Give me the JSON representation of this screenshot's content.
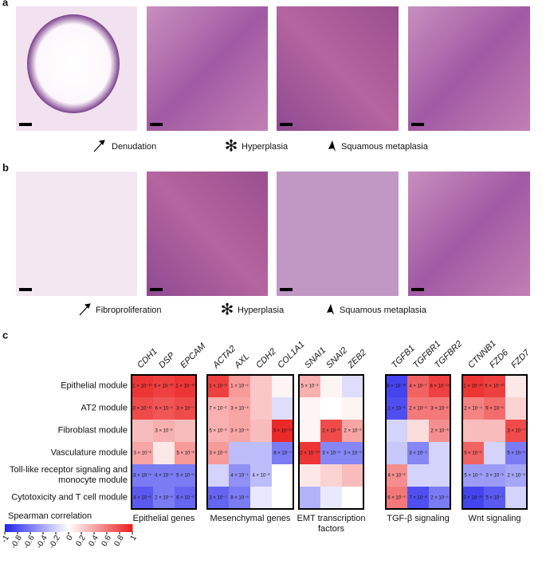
{
  "panels": [
    {
      "label": "a",
      "captions": [
        "Denudation",
        "Hyperplasia",
        "Squamous metaplasia"
      ]
    },
    {
      "label": "b",
      "captions": [
        "Fibroproliferation",
        "Hyperplasia",
        "Squamous metaplasia"
      ]
    }
  ],
  "chart_data": {
    "type": "heatmap",
    "label": "c",
    "rows": [
      "Epithelial module",
      "AT2 module",
      "Fibroblast module",
      "Vasculature module",
      "Toll-like receptor signaling and monocyte module",
      "Cytotoxicity and T cell module"
    ],
    "groups": [
      {
        "name": "Epithelial genes",
        "columns": [
          "CDH1",
          "DSP",
          "EPCAM"
        ],
        "values": [
          [
            0.9,
            0.85,
            0.9
          ],
          [
            0.8,
            0.75,
            0.8
          ],
          [
            0.3,
            0.35,
            0.3
          ],
          [
            0.4,
            0.1,
            0.45
          ],
          [
            -0.6,
            -0.6,
            -0.6
          ],
          [
            -0.75,
            -0.6,
            -0.7
          ]
        ],
        "annotations": [
          [
            "1 × 10⁻¹⁰",
            "6 × 10⁻¹⁰",
            "1 × 10⁻¹⁰"
          ],
          [
            "3 × 10⁻¹¹",
            "6 × 10⁻³",
            "3 × 10⁻⁷"
          ],
          [
            null,
            "3 × 10⁻²",
            null
          ],
          [
            "3 × 10⁻²",
            null,
            "5 × 10⁻³"
          ],
          [
            "8 × 10⁻⁵",
            "4 × 10⁻⁵",
            "5 × 10⁻⁵"
          ],
          [
            "4 × 10⁻⁶",
            "2 × 10⁻⁵",
            "6 × 10⁻⁵"
          ]
        ]
      },
      {
        "name": "Mesenchymal genes",
        "columns": [
          "ACTA2",
          "AXL",
          "CDH2",
          "COL1A1"
        ],
        "values": [
          [
            0.85,
            0.45,
            0.25,
            0.05
          ],
          [
            0.35,
            0.4,
            0.25,
            -0.15
          ],
          [
            0.35,
            0.4,
            0.3,
            0.95
          ],
          [
            0.45,
            -0.3,
            -0.3,
            -0.6
          ],
          [
            -0.2,
            -0.5,
            -0.3,
            0
          ],
          [
            -0.7,
            -0.6,
            -0.1,
            0
          ]
        ],
        "annotations": [
          [
            "1 × 10⁻⁸",
            "1 × 10⁻⁴",
            null,
            null
          ],
          [
            "7 × 10⁻²",
            "3 × 10⁻⁴",
            null,
            null
          ],
          [
            "5 × 10⁻²",
            "3 × 10⁻⁴",
            null,
            "3 × 10⁻¹¹"
          ],
          [
            "3 × 10⁻³",
            null,
            null,
            "8 × 10⁻⁴"
          ],
          [
            null,
            "4 × 10⁻⁴",
            "4 × 10⁻²",
            null
          ],
          [
            "3 × 10⁻⁷",
            "8 × 10⁻⁵",
            null,
            null
          ]
        ]
      },
      {
        "name": "EMT transcription factors",
        "columns": [
          "SNAI1",
          "SNAI2",
          "ZEB2"
        ],
        "values": [
          [
            0.35,
            0.05,
            -0.15
          ],
          [
            0.05,
            0,
            0.05
          ],
          [
            0.05,
            0.8,
            0.4
          ],
          [
            0.9,
            -0.55,
            -0.55
          ],
          [
            0.1,
            0.2,
            0.3
          ],
          [
            -0.35,
            -0.1,
            0
          ]
        ],
        "annotations": [
          [
            "5 × 10⁻²",
            null,
            null
          ],
          [
            null,
            null,
            null
          ],
          [
            null,
            "2 × 10⁻⁶",
            "2 × 10⁻²"
          ],
          [
            "2 × 10⁻¹⁰",
            "3 × 10⁻⁵",
            "3 × 10⁻⁵"
          ],
          [
            null,
            null,
            null
          ],
          [
            null,
            null,
            null
          ]
        ]
      },
      {
        "name": "TGF-β signaling",
        "columns": [
          "TGFB1",
          "TGFBR1",
          "TGFBR2"
        ],
        "values": [
          [
            -0.85,
            0.7,
            0.85
          ],
          [
            -0.8,
            0.6,
            0.6
          ],
          [
            -0.2,
            0.15,
            0.5
          ],
          [
            -0.25,
            -0.55,
            -0.2
          ],
          [
            0.5,
            -0.2,
            -0.2
          ],
          [
            0.6,
            -0.8,
            -0.6
          ]
        ],
        "annotations": [
          [
            "8 × 10⁻¹⁰",
            "4 × 10⁻⁷",
            "8 × 10⁻¹¹"
          ],
          [
            "1 × 10⁻⁸",
            "2 × 10⁻⁵",
            "3 × 10⁻⁵"
          ],
          [
            null,
            null,
            "2 × 10⁻³"
          ],
          [
            null,
            "3 × 10⁻⁴",
            null
          ],
          [
            "4 × 10⁻³",
            null,
            null
          ],
          [
            "6 × 10⁻⁴",
            "7 × 10⁻⁸",
            "2 × 10⁻⁴"
          ]
        ]
      },
      {
        "name": "Wnt signaling",
        "columns": [
          "CTNNB1",
          "FZD6",
          "FZD7"
        ],
        "values": [
          [
            0.9,
            0.85,
            0.1
          ],
          [
            0.55,
            0.65,
            0.2
          ],
          [
            0.3,
            0.3,
            0.8
          ],
          [
            0.7,
            -0.2,
            -0.6
          ],
          [
            -0.45,
            -0.45,
            -0.4
          ],
          [
            -0.85,
            -0.75,
            -0.2
          ]
        ],
        "annotations": [
          [
            "1 × 10⁻¹⁰",
            "5 × 10⁻¹⁰",
            null
          ],
          [
            "2 × 10⁻⁴",
            "9 × 10⁻⁶",
            null
          ],
          [
            null,
            null,
            "3 × 10⁻⁷"
          ],
          [
            "9 × 10⁻⁶",
            null,
            "5 × 10⁻⁵"
          ],
          [
            "5 × 10⁻³",
            "3 × 10⁻³",
            "2 × 10⁻²"
          ],
          [
            "3 × 10⁻¹⁰",
            "5 × 10⁻⁷",
            null
          ]
        ]
      }
    ],
    "colorbar": {
      "title": "Spearman correlation",
      "lim": [
        -1,
        1
      ],
      "ticks": [
        -1,
        -0.8,
        -0.6,
        -0.4,
        -0.2,
        0,
        0.2,
        0.4,
        0.6,
        0.8,
        1
      ]
    }
  }
}
